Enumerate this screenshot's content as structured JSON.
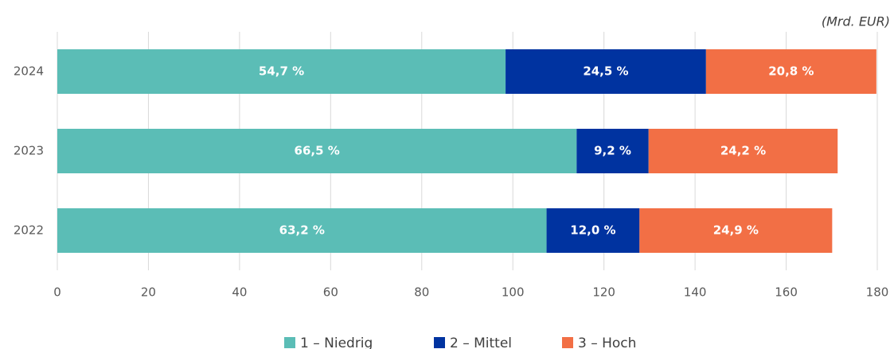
{
  "chart_data": {
    "type": "hbar_stacked",
    "unit_label": "(Mrd. EUR)",
    "categories": [
      "2024",
      "2023",
      "2022"
    ],
    "series": [
      {
        "name": "1 – Niedrig",
        "color": "#5bbdb6",
        "values": [
          98.4,
          114.0,
          107.4
        ],
        "labels": [
          "54,7 %",
          "66,5 %",
          "63,2 %"
        ]
      },
      {
        "name": "2 – Mittel",
        "color": "#0033a0",
        "values": [
          44.0,
          15.8,
          20.4
        ],
        "labels": [
          "24,5 %",
          "9,2 %",
          "12,0 %"
        ]
      },
      {
        "name": "3 – Hoch",
        "color": "#f26f45",
        "values": [
          37.4,
          41.5,
          42.3
        ],
        "labels": [
          "20,8 %",
          "24,2 %",
          "24,9 %"
        ]
      }
    ],
    "xlim": [
      0,
      180
    ],
    "xticks": [
      0,
      20,
      40,
      60,
      80,
      100,
      120,
      140,
      160,
      180
    ],
    "grid": true,
    "legend": "bottom"
  }
}
